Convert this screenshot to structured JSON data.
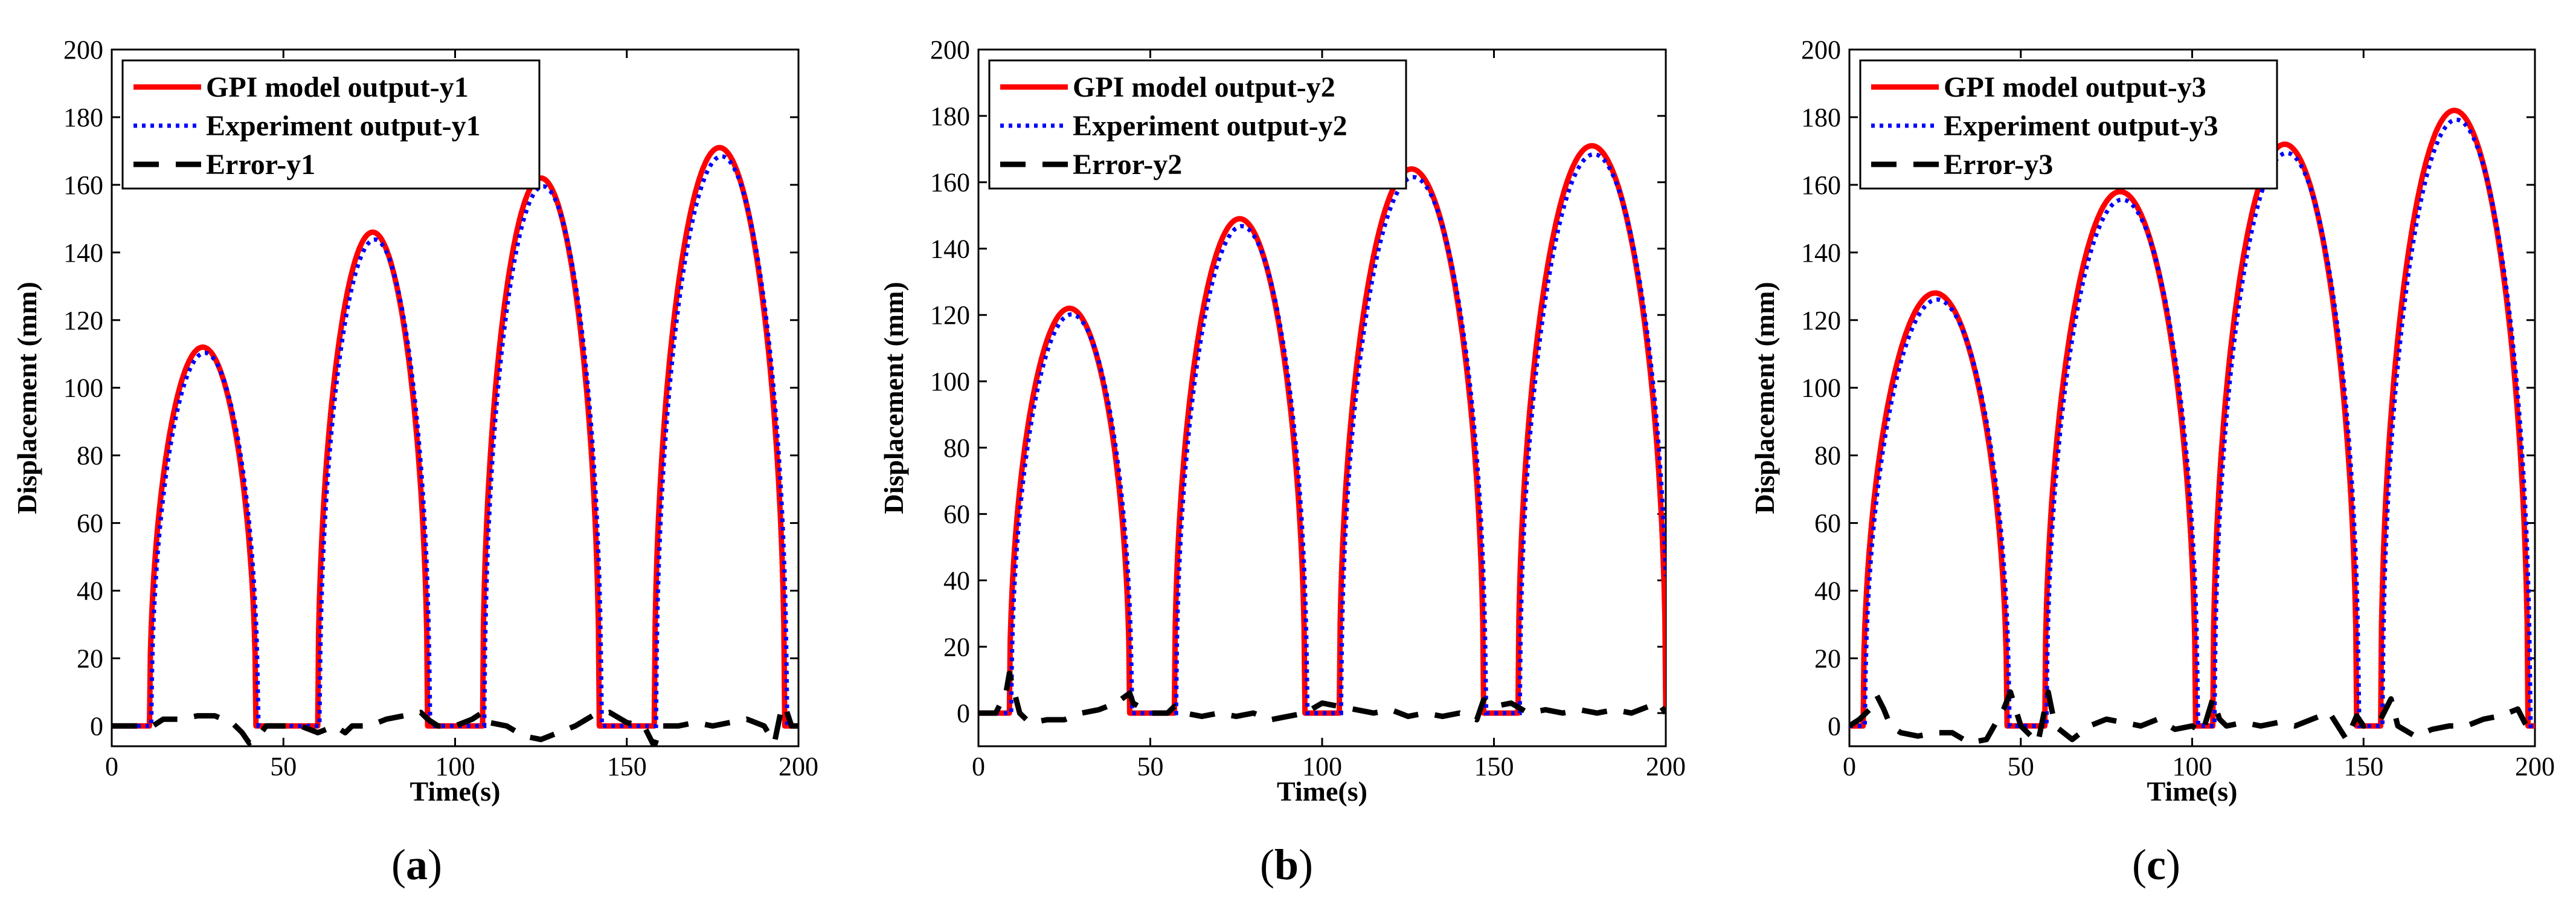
{
  "figure": {
    "captions": [
      "(a)",
      "(b)",
      "(c)"
    ]
  },
  "colors": {
    "model": "#ff0000",
    "experiment": "#0000ff",
    "error": "#000000"
  },
  "chart_data": [
    {
      "type": "line",
      "panel": "a",
      "caption": "(a)",
      "xlabel": "Time(s)",
      "ylabel": "Displacement (mm)",
      "xlim": [
        0,
        200
      ],
      "ylim": [
        -6,
        200
      ],
      "xticks": [
        0,
        50,
        100,
        150,
        200
      ],
      "yticks": [
        0,
        20,
        40,
        60,
        80,
        100,
        120,
        140,
        160,
        180,
        200
      ],
      "legend_position": "top-left",
      "pulses": [
        {
          "start": 11,
          "end": 42,
          "peak": 112
        },
        {
          "start": 60,
          "end": 92,
          "peak": 146
        },
        {
          "start": 108,
          "end": 142,
          "peak": 162
        },
        {
          "start": 158,
          "end": 196,
          "peak": 171
        }
      ],
      "series": [
        {
          "name": "GPI model output-y1",
          "style": "solid"
        },
        {
          "name": "Experiment output-y1",
          "style": "dotted"
        },
        {
          "name": "Error-y1",
          "style": "dashed",
          "x": [
            0,
            12,
            15,
            20,
            25,
            30,
            35,
            38,
            40,
            42,
            45,
            50,
            55,
            60,
            65,
            68,
            70,
            75,
            80,
            85,
            90,
            92,
            95,
            100,
            105,
            108,
            110,
            115,
            120,
            125,
            130,
            135,
            140,
            145,
            150,
            155,
            158,
            160,
            165,
            170,
            175,
            180,
            185,
            190,
            193,
            195,
            196,
            198,
            200
          ],
          "values": [
            0,
            0,
            2,
            2,
            3,
            3,
            1,
            -2,
            -5,
            -4,
            0,
            0,
            0,
            -2,
            0,
            -2,
            0,
            0,
            2,
            3,
            4,
            2,
            0,
            0,
            2,
            4,
            1,
            0,
            -3,
            -4,
            -2,
            0,
            3,
            4,
            1,
            0,
            -6,
            0,
            0,
            1,
            0,
            1,
            2,
            0,
            -5,
            5,
            6,
            0,
            0
          ]
        }
      ]
    },
    {
      "type": "line",
      "panel": "b",
      "caption": "(b)",
      "xlabel": "Time(s)",
      "ylabel": "Displacement (mm)",
      "xlim": [
        0,
        200
      ],
      "ylim": [
        -10,
        200
      ],
      "xticks": [
        0,
        50,
        100,
        150,
        200
      ],
      "yticks": [
        0,
        20,
        40,
        60,
        80,
        100,
        120,
        140,
        160,
        180,
        200
      ],
      "legend_position": "top-left",
      "pulses": [
        {
          "start": 9,
          "end": 44,
          "peak": 122
        },
        {
          "start": 57,
          "end": 95,
          "peak": 149
        },
        {
          "start": 105,
          "end": 147,
          "peak": 164
        },
        {
          "start": 157,
          "end": 200,
          "peak": 171
        }
      ],
      "series": [
        {
          "name": "GPI model output-y2",
          "style": "solid"
        },
        {
          "name": "Experiment output-y2",
          "style": "dotted"
        },
        {
          "name": "Error-y2",
          "style": "dashed",
          "x": [
            0,
            5,
            8,
            9,
            10,
            12,
            15,
            20,
            25,
            30,
            35,
            40,
            44,
            45,
            50,
            55,
            57,
            60,
            65,
            70,
            75,
            80,
            85,
            90,
            95,
            100,
            105,
            110,
            115,
            120,
            125,
            130,
            135,
            140,
            145,
            147,
            150,
            155,
            160,
            165,
            170,
            175,
            180,
            185,
            190,
            195,
            198,
            200
          ],
          "values": [
            0,
            0,
            6,
            12,
            8,
            0,
            -3,
            -2,
            -2,
            0,
            1,
            3,
            6,
            3,
            0,
            0,
            2,
            0,
            -1,
            0,
            -1,
            0,
            -2,
            -1,
            0,
            3,
            2,
            1,
            0,
            1,
            -1,
            0,
            -1,
            0,
            -2,
            4,
            2,
            3,
            0,
            1,
            0,
            1,
            0,
            1,
            0,
            2,
            3,
            0
          ]
        }
      ]
    },
    {
      "type": "line",
      "panel": "c",
      "caption": "(c)",
      "xlabel": "Time(s)",
      "ylabel": "Displacement (mm)",
      "xlim": [
        0,
        200
      ],
      "ylim": [
        -6,
        200
      ],
      "xticks": [
        0,
        50,
        100,
        150,
        200
      ],
      "yticks": [
        0,
        20,
        40,
        60,
        80,
        100,
        120,
        140,
        160,
        180,
        200
      ],
      "legend_position": "top-left",
      "pulses": [
        {
          "start": 4,
          "end": 46,
          "peak": 128
        },
        {
          "start": 57,
          "end": 101,
          "peak": 158
        },
        {
          "start": 106,
          "end": 148,
          "peak": 172
        },
        {
          "start": 155,
          "end": 198,
          "peak": 182
        }
      ],
      "series": [
        {
          "name": "GPI model output-y3",
          "style": "solid"
        },
        {
          "name": "Experiment output-y3",
          "style": "dotted"
        },
        {
          "name": "Error-y3",
          "style": "dashed",
          "x": [
            0,
            3,
            6,
            8,
            10,
            12,
            15,
            20,
            25,
            30,
            35,
            40,
            45,
            47,
            50,
            55,
            58,
            60,
            65,
            70,
            75,
            80,
            85,
            90,
            95,
            100,
            103,
            106,
            108,
            110,
            115,
            120,
            125,
            130,
            135,
            140,
            145,
            148,
            150,
            155,
            158,
            160,
            165,
            170,
            175,
            180,
            185,
            190,
            195,
            197,
            200
          ],
          "values": [
            0,
            2,
            5,
            9,
            5,
            0,
            -2,
            -3,
            -2,
            -2,
            -5,
            -4,
            5,
            10,
            0,
            -5,
            10,
            0,
            -4,
            0,
            2,
            1,
            0,
            2,
            -1,
            0,
            -2,
            8,
            2,
            0,
            1,
            0,
            1,
            0,
            2,
            4,
            -4,
            3,
            0,
            2,
            8,
            0,
            -3,
            -1,
            0,
            0,
            2,
            3,
            5,
            1,
            -3
          ]
        }
      ]
    }
  ]
}
